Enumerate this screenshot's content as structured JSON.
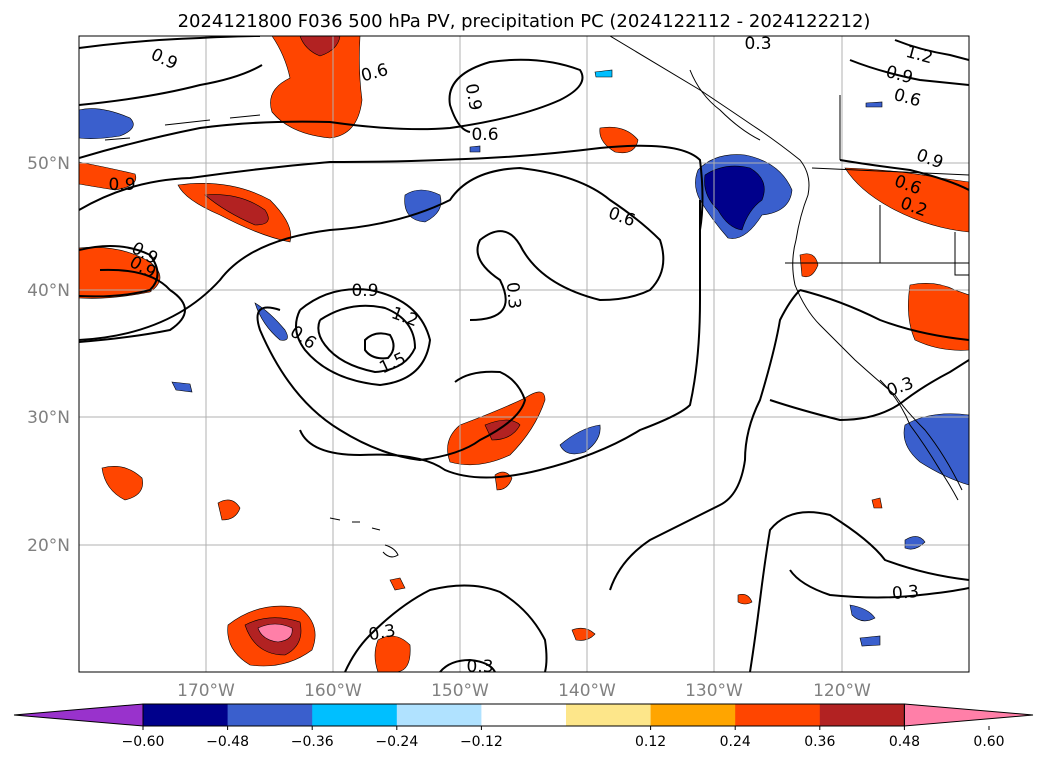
{
  "title": "2024121800 F036 500 hPa PV, precipitation PC (2024122112 - 2024122212)",
  "map": {
    "lon_ticks": [
      "170°W",
      "160°W",
      "150°W",
      "140°W",
      "130°W",
      "120°W"
    ],
    "lat_ticks": [
      "50°N",
      "40°N",
      "30°N",
      "20°N"
    ],
    "grid": true,
    "gridline_color": "#b0b0b0",
    "coastline_color": "#000000"
  },
  "contour_labels": [
    "0.9",
    "0.6",
    "0.3",
    "1.2",
    "0.9",
    "0.6",
    "0.9",
    "0.6",
    "0.6",
    "0.9",
    "0.9",
    "0.6",
    "0.3",
    "0.9",
    "0.9",
    "0.2",
    "0.9",
    "1.2",
    "1.5",
    "0.6",
    "0.3",
    "0.3",
    "0.3",
    "0.3",
    "0.3"
  ],
  "colorbar": {
    "ticks": [
      "−0.60",
      "−0.48",
      "−0.36",
      "−0.24",
      "−0.12",
      "0.12",
      "0.24",
      "0.36",
      "0.48",
      "0.60"
    ],
    "colors": [
      "#9932cc",
      "#00008b",
      "#3a5fcd",
      "#00bfff",
      "#b0e2ff",
      "#ffffff",
      "#fde68a",
      "#ffa500",
      "#ff4500",
      "#b22222",
      "#ff7fa8"
    ]
  }
}
